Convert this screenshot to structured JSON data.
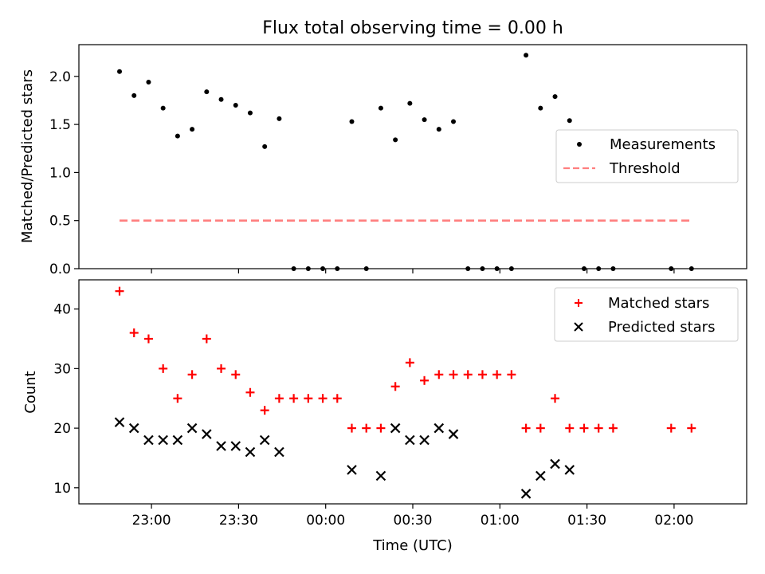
{
  "colors": {
    "measurements": "#000000",
    "threshold": "#ff7f7f",
    "matched": "#ff0000",
    "predicted": "#000000"
  },
  "chart_data": [
    {
      "type": "scatter",
      "title": "Flux total observing time = 0.00 h",
      "xlabel": "",
      "ylabel": "Matched/Predicted stars",
      "ylim": [
        0,
        2.33
      ],
      "xlim": [
        "2022-12-31T22:35",
        "2023-01-01T02:25"
      ],
      "yticks": [
        "0.0",
        "0.5",
        "1.0",
        "1.5",
        "2.0"
      ],
      "grid": false,
      "legend_position": "center-right",
      "series": [
        {
          "name": "Measurements",
          "marker": "dot",
          "points": [
            {
              "x": "2022-12-31T22:49",
              "y": 2.05
            },
            {
              "x": "2022-12-31T22:54",
              "y": 1.8
            },
            {
              "x": "2022-12-31T22:59",
              "y": 1.94
            },
            {
              "x": "2022-12-31T23:04",
              "y": 1.67
            },
            {
              "x": "2022-12-31T23:09",
              "y": 1.38
            },
            {
              "x": "2022-12-31T23:14",
              "y": 1.45
            },
            {
              "x": "2022-12-31T23:19",
              "y": 1.84
            },
            {
              "x": "2022-12-31T23:24",
              "y": 1.76
            },
            {
              "x": "2022-12-31T23:29",
              "y": 1.7
            },
            {
              "x": "2022-12-31T23:34",
              "y": 1.62
            },
            {
              "x": "2022-12-31T23:39",
              "y": 1.27
            },
            {
              "x": "2022-12-31T23:44",
              "y": 1.56
            },
            {
              "x": "2022-12-31T23:49",
              "y": 0.0
            },
            {
              "x": "2022-12-31T23:54",
              "y": 0.0
            },
            {
              "x": "2022-12-31T23:59",
              "y": 0.0
            },
            {
              "x": "2023-01-01T00:04",
              "y": 0.0
            },
            {
              "x": "2023-01-01T00:09",
              "y": 1.53
            },
            {
              "x": "2023-01-01T00:14",
              "y": 0.0
            },
            {
              "x": "2023-01-01T00:19",
              "y": 1.67
            },
            {
              "x": "2023-01-01T00:24",
              "y": 1.34
            },
            {
              "x": "2023-01-01T00:29",
              "y": 1.72
            },
            {
              "x": "2023-01-01T00:34",
              "y": 1.55
            },
            {
              "x": "2023-01-01T00:39",
              "y": 1.45
            },
            {
              "x": "2023-01-01T00:44",
              "y": 1.53
            },
            {
              "x": "2023-01-01T00:49",
              "y": 0.0
            },
            {
              "x": "2023-01-01T00:54",
              "y": 0.0
            },
            {
              "x": "2023-01-01T00:59",
              "y": 0.0
            },
            {
              "x": "2023-01-01T01:04",
              "y": 0.0
            },
            {
              "x": "2023-01-01T01:09",
              "y": 2.22
            },
            {
              "x": "2023-01-01T01:14",
              "y": 1.67
            },
            {
              "x": "2023-01-01T01:19",
              "y": 1.79
            },
            {
              "x": "2023-01-01T01:24",
              "y": 1.54
            },
            {
              "x": "2023-01-01T01:29",
              "y": 0.0
            },
            {
              "x": "2023-01-01T01:34",
              "y": 0.0
            },
            {
              "x": "2023-01-01T01:39",
              "y": 0.0
            },
            {
              "x": "2023-01-01T01:59",
              "y": 0.0
            },
            {
              "x": "2023-01-01T02:06",
              "y": 0.0
            }
          ]
        },
        {
          "name": "Threshold",
          "marker": "dashed-line",
          "points": [
            {
              "x": "2022-12-31T22:49",
              "y": 0.5
            },
            {
              "x": "2023-01-01T02:06",
              "y": 0.5
            }
          ]
        }
      ]
    },
    {
      "type": "scatter",
      "title": "",
      "xlabel": "Time (UTC)",
      "ylabel": "Count",
      "ylim": [
        7.3,
        44.9
      ],
      "xlim": [
        "2022-12-31T22:35",
        "2023-01-01T02:25"
      ],
      "yticks": [
        "10",
        "20",
        "30",
        "40"
      ],
      "xtick_values": [
        "2022-12-31T23:00",
        "2022-12-31T23:30",
        "2023-01-01T00:00",
        "2023-01-01T00:30",
        "2023-01-01T01:00",
        "2023-01-01T01:30",
        "2023-01-01T02:00"
      ],
      "xticks": [
        "23:00",
        "23:30",
        "00:00",
        "00:30",
        "01:00",
        "01:30",
        "02:00"
      ],
      "grid": false,
      "legend_position": "top-right",
      "series": [
        {
          "name": "Matched stars",
          "marker": "plus",
          "points": [
            {
              "x": "2022-12-31T22:49",
              "y": 43
            },
            {
              "x": "2022-12-31T22:54",
              "y": 36
            },
            {
              "x": "2022-12-31T22:59",
              "y": 35
            },
            {
              "x": "2022-12-31T23:04",
              "y": 30
            },
            {
              "x": "2022-12-31T23:09",
              "y": 25
            },
            {
              "x": "2022-12-31T23:14",
              "y": 29
            },
            {
              "x": "2022-12-31T23:19",
              "y": 35
            },
            {
              "x": "2022-12-31T23:24",
              "y": 30
            },
            {
              "x": "2022-12-31T23:29",
              "y": 29
            },
            {
              "x": "2022-12-31T23:34",
              "y": 26
            },
            {
              "x": "2022-12-31T23:39",
              "y": 23
            },
            {
              "x": "2022-12-31T23:44",
              "y": 25
            },
            {
              "x": "2022-12-31T23:49",
              "y": 25
            },
            {
              "x": "2022-12-31T23:54",
              "y": 25
            },
            {
              "x": "2022-12-31T23:59",
              "y": 25
            },
            {
              "x": "2023-01-01T00:04",
              "y": 25
            },
            {
              "x": "2023-01-01T00:09",
              "y": 20
            },
            {
              "x": "2023-01-01T00:14",
              "y": 20
            },
            {
              "x": "2023-01-01T00:19",
              "y": 20
            },
            {
              "x": "2023-01-01T00:24",
              "y": 27
            },
            {
              "x": "2023-01-01T00:29",
              "y": 31
            },
            {
              "x": "2023-01-01T00:34",
              "y": 28
            },
            {
              "x": "2023-01-01T00:39",
              "y": 29
            },
            {
              "x": "2023-01-01T00:44",
              "y": 29
            },
            {
              "x": "2023-01-01T00:49",
              "y": 29
            },
            {
              "x": "2023-01-01T00:54",
              "y": 29
            },
            {
              "x": "2023-01-01T00:59",
              "y": 29
            },
            {
              "x": "2023-01-01T01:04",
              "y": 29
            },
            {
              "x": "2023-01-01T01:09",
              "y": 20
            },
            {
              "x": "2023-01-01T01:14",
              "y": 20
            },
            {
              "x": "2023-01-01T01:19",
              "y": 25
            },
            {
              "x": "2023-01-01T01:24",
              "y": 20
            },
            {
              "x": "2023-01-01T01:29",
              "y": 20
            },
            {
              "x": "2023-01-01T01:34",
              "y": 20
            },
            {
              "x": "2023-01-01T01:39",
              "y": 20
            },
            {
              "x": "2023-01-01T01:59",
              "y": 20
            },
            {
              "x": "2023-01-01T02:06",
              "y": 20
            }
          ]
        },
        {
          "name": "Predicted stars",
          "marker": "x",
          "points": [
            {
              "x": "2022-12-31T22:49",
              "y": 21
            },
            {
              "x": "2022-12-31T22:54",
              "y": 20
            },
            {
              "x": "2022-12-31T22:59",
              "y": 18
            },
            {
              "x": "2022-12-31T23:04",
              "y": 18
            },
            {
              "x": "2022-12-31T23:09",
              "y": 18
            },
            {
              "x": "2022-12-31T23:14",
              "y": 20
            },
            {
              "x": "2022-12-31T23:19",
              "y": 19
            },
            {
              "x": "2022-12-31T23:24",
              "y": 17
            },
            {
              "x": "2022-12-31T23:29",
              "y": 17
            },
            {
              "x": "2022-12-31T23:34",
              "y": 16
            },
            {
              "x": "2022-12-31T23:39",
              "y": 18
            },
            {
              "x": "2022-12-31T23:44",
              "y": 16
            },
            {
              "x": "2023-01-01T00:09",
              "y": 13
            },
            {
              "x": "2023-01-01T00:19",
              "y": 12
            },
            {
              "x": "2023-01-01T00:24",
              "y": 20
            },
            {
              "x": "2023-01-01T00:29",
              "y": 18
            },
            {
              "x": "2023-01-01T00:34",
              "y": 18
            },
            {
              "x": "2023-01-01T00:39",
              "y": 20
            },
            {
              "x": "2023-01-01T00:44",
              "y": 19
            },
            {
              "x": "2023-01-01T01:09",
              "y": 9
            },
            {
              "x": "2023-01-01T01:14",
              "y": 12
            },
            {
              "x": "2023-01-01T01:19",
              "y": 14
            },
            {
              "x": "2023-01-01T01:24",
              "y": 13
            }
          ]
        }
      ]
    }
  ]
}
